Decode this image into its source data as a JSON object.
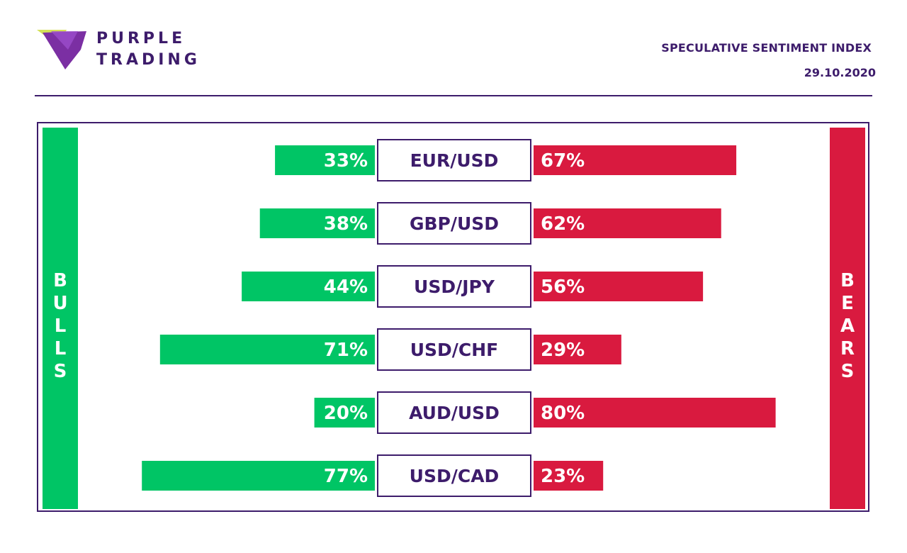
{
  "brand": {
    "line1": "PURPLE",
    "line2": "TRADING"
  },
  "header": {
    "title": "SPECULATIVE SENTIMENT INDEX",
    "date": "29.10.2020"
  },
  "side_labels": {
    "bulls": "BULLS",
    "bears": "BEARS"
  },
  "colors": {
    "bulls": "#00c565",
    "bears": "#d91a3f",
    "brand": "#3d1c6b"
  },
  "chart_data": {
    "type": "bar",
    "categories": [
      "EUR/USD",
      "GBP/USD",
      "USD/JPY",
      "USD/CHF",
      "AUD/USD",
      "USD/CAD"
    ],
    "series": [
      {
        "name": "BULLS",
        "values": [
          33,
          38,
          44,
          71,
          20,
          77
        ],
        "labels": [
          "33%",
          "38%",
          "44%",
          "71%",
          "20%",
          "77%"
        ]
      },
      {
        "name": "BEARS",
        "values": [
          67,
          62,
          56,
          29,
          80,
          23
        ],
        "labels": [
          "67%",
          "62%",
          "56%",
          "29%",
          "80%",
          "23%"
        ]
      }
    ]
  }
}
